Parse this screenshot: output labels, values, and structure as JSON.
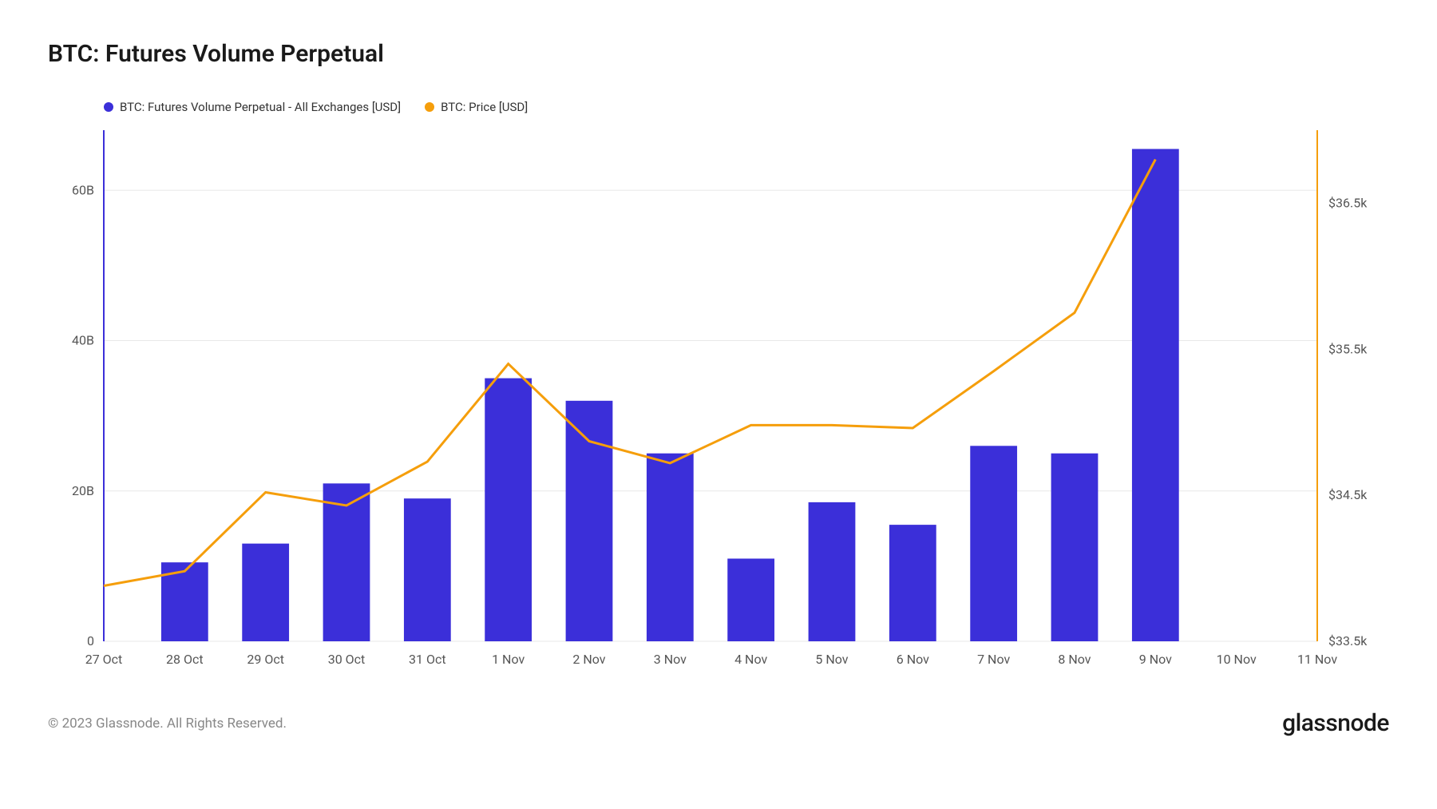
{
  "title": "BTC: Futures Volume Perpetual",
  "legend": [
    {
      "label": "BTC: Futures Volume Perpetual - All Exchanges [USD]",
      "color": "#3b2fd9"
    },
    {
      "label": "BTC: Price [USD]",
      "color": "#f59e0b"
    }
  ],
  "copyright": "© 2023 Glassnode. All Rights Reserved.",
  "brand": "glassnode",
  "chart": {
    "type": "bar+line",
    "background_color": "#ffffff",
    "grid_color": "#e8e8e8",
    "x_categories": [
      "27 Oct",
      "28 Oct",
      "29 Oct",
      "30 Oct",
      "31 Oct",
      "1 Nov",
      "2 Nov",
      "3 Nov",
      "4 Nov",
      "5 Nov",
      "6 Nov",
      "7 Nov",
      "8 Nov",
      "9 Nov",
      "10 Nov",
      "11 Nov"
    ],
    "left_axis": {
      "min": 0,
      "max": 68,
      "ticks": [
        0,
        20,
        40,
        60
      ],
      "tick_labels": [
        "0",
        "20B",
        "40B",
        "60B"
      ],
      "color": "#3b2fd9"
    },
    "right_axis": {
      "min": 33.5,
      "max": 37.0,
      "ticks": [
        33.5,
        34.5,
        35.5,
        36.5
      ],
      "tick_labels": [
        "$33.5k",
        "$34.5k",
        "$35.5k",
        "$36.5k"
      ],
      "color": "#f59e0b"
    },
    "bars": {
      "color": "#3b2fd9",
      "width_ratio": 0.58,
      "values": [
        null,
        10.5,
        13,
        21,
        19,
        35,
        32,
        25,
        11,
        18.5,
        15.5,
        26,
        25,
        65.5,
        null,
        null
      ]
    },
    "line": {
      "color": "#f59e0b",
      "width": 3,
      "values": [
        33.88,
        33.98,
        34.52,
        34.43,
        34.73,
        35.4,
        34.87,
        34.72,
        34.98,
        34.98,
        34.96,
        35.35,
        35.75,
        36.8,
        null,
        null
      ]
    }
  }
}
